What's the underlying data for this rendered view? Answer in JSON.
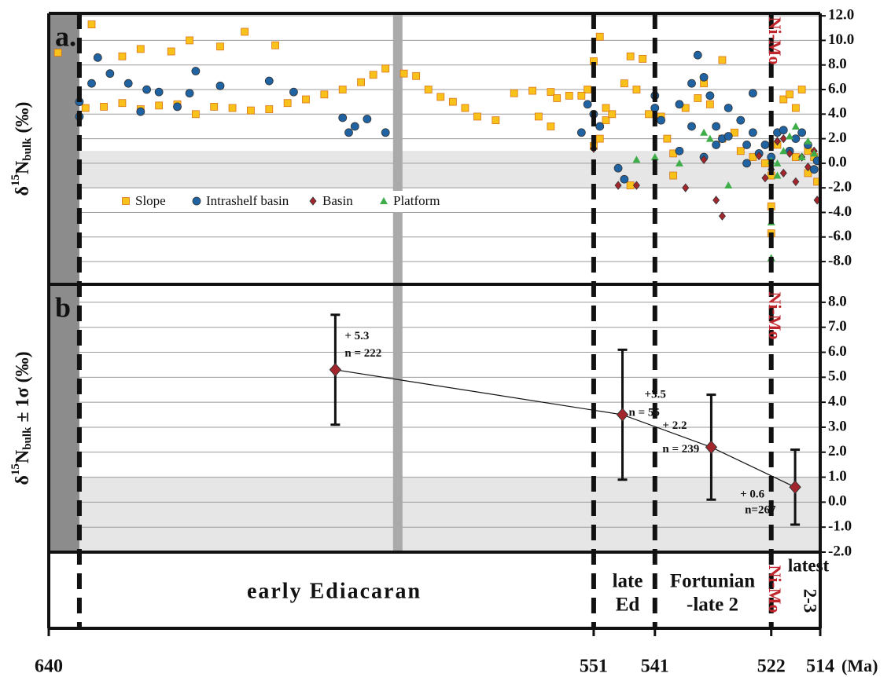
{
  "chart_data": [
    {
      "type": "scatter",
      "panel_label": "a.",
      "y_label": {
        "main": "δ",
        "sup": "15",
        "base": "N",
        "sub": "bulk",
        "rest": " (‰)"
      },
      "xlim": [
        640,
        514
      ],
      "ylim": [
        -9.85,
        12.2
      ],
      "yticks": [
        {
          "value": 12,
          "label": "12.0"
        },
        {
          "value": 10,
          "label": "10.0"
        },
        {
          "value": 8,
          "label": "8.0"
        },
        {
          "value": 6,
          "label": "6.0"
        },
        {
          "value": 4,
          "label": "4.0"
        },
        {
          "value": 2,
          "label": "2.0"
        },
        {
          "value": 0,
          "label": "0.0"
        },
        {
          "value": -2,
          "label": "-2.0"
        },
        {
          "value": -4,
          "label": "-4.0"
        },
        {
          "value": -6,
          "label": "-6.0"
        },
        {
          "value": -8,
          "label": "-8.0"
        }
      ],
      "band": [
        -2,
        1
      ],
      "grid": true,
      "series": [
        {
          "name": "Slope",
          "color": "#f9c21a",
          "marker": "square",
          "x": [
            638.5,
            633,
            628,
            625,
            620,
            617,
            612,
            608,
            603,
            634,
            631,
            628,
            625,
            622,
            619,
            616,
            613,
            610,
            607,
            604,
            601,
            598,
            595,
            592,
            589,
            587,
            585,
            582,
            580,
            578,
            576,
            574,
            572,
            570,
            567,
            564,
            561,
            558,
            555,
            558,
            560,
            552,
            551,
            550,
            550,
            549,
            551,
            548,
            546,
            545,
            544,
            543,
            542,
            540,
            539,
            538,
            545,
            536,
            534,
            533,
            532,
            530,
            530,
            528,
            527,
            525,
            523,
            522,
            522,
            522,
            521,
            520,
            519,
            518,
            517,
            516,
            515,
            514.5,
            518,
            516,
            538,
            553,
            557,
            549
          ],
          "values": [
            9.0,
            11.3,
            8.7,
            9.3,
            9.1,
            10.0,
            9.5,
            10.7,
            9.6,
            4.5,
            4.6,
            4.9,
            4.4,
            4.7,
            4.8,
            4.0,
            4.6,
            4.5,
            4.3,
            4.4,
            4.9,
            5.2,
            5.6,
            6.0,
            6.6,
            7.2,
            7.7,
            7.3,
            7.1,
            6.0,
            5.4,
            5.0,
            4.5,
            3.8,
            3.5,
            5.7,
            5.9,
            5.8,
            5.5,
            3.0,
            3.8,
            6.0,
            1.4,
            2.0,
            10.3,
            3.5,
            8.3,
            4.0,
            6.5,
            8.7,
            6.0,
            8.5,
            4.0,
            3.8,
            2.0,
            -1.0,
            -1.8,
            4.5,
            5.3,
            6.5,
            4.8,
            2.0,
            8.4,
            2.5,
            1.0,
            0.5,
            0.0,
            -1.0,
            -3.5,
            -5.7,
            1.5,
            5.2,
            5.6,
            4.5,
            6.0,
            1.0,
            0.5,
            -1.5,
            0.5,
            -0.8,
            0.8,
            5.5,
            5.3,
            4.5
          ]
        },
        {
          "name": "Intrashelf basin",
          "color": "#1f63a3",
          "marker": "circle",
          "x": [
            635,
            635,
            633,
            632,
            630,
            627,
            625,
            624,
            622,
            619,
            617,
            616,
            612,
            604,
            600,
            592,
            591,
            590,
            588,
            585,
            553,
            552,
            551,
            550,
            547,
            546,
            541,
            541,
            540,
            537,
            535,
            534,
            533,
            532,
            531,
            530,
            529,
            527,
            526,
            525,
            524,
            523,
            522,
            521,
            520,
            519,
            518,
            517,
            516,
            515,
            514.5,
            525,
            537,
            533,
            529,
            531,
            535,
            526
          ],
          "values": [
            3.8,
            5.0,
            6.5,
            8.6,
            7.3,
            6.5,
            4.2,
            6.0,
            5.8,
            4.6,
            5.7,
            7.5,
            6.3,
            6.7,
            5.8,
            3.7,
            2.5,
            3.0,
            3.6,
            2.5,
            2.5,
            4.8,
            4.0,
            3.0,
            -0.4,
            -1.3,
            5.5,
            4.5,
            3.5,
            4.8,
            6.5,
            8.8,
            7.0,
            5.5,
            3.0,
            2.0,
            4.5,
            3.5,
            1.5,
            2.5,
            0.8,
            1.5,
            0.5,
            2.5,
            2.7,
            1.0,
            2.0,
            2.5,
            1.5,
            -0.5,
            0.2,
            5.7,
            1.0,
            0.5,
            2.2,
            1.5,
            3.0,
            0.0
          ]
        },
        {
          "name": "Basin",
          "color": "#a3262d",
          "marker": "diamond",
          "x": [
            551,
            547,
            544,
            536,
            531,
            530,
            533,
            524,
            522,
            521,
            520,
            519,
            518,
            517,
            516,
            515,
            514.5,
            520,
            523
          ],
          "values": [
            1.2,
            -1.8,
            -1.8,
            -2.0,
            -3.0,
            -4.3,
            0.3,
            0.6,
            -0.5,
            1.8,
            -0.8,
            0.8,
            -1.5,
            0.5,
            -0.3,
            1.0,
            -3.0,
            2.0,
            -1.2
          ]
        },
        {
          "name": "Platform",
          "color": "#3fae4a",
          "marker": "triangle",
          "x": [
            544,
            541,
            537,
            533,
            532,
            529,
            522,
            522,
            521,
            520,
            519,
            518,
            517,
            521,
            516,
            515,
            522
          ],
          "values": [
            0.3,
            0.5,
            0.0,
            2.5,
            2.0,
            -1.8,
            -4.8,
            -7.7,
            0.0,
            1.0,
            2.2,
            3.0,
            0.5,
            -1.0,
            1.8,
            0.8,
            0.2
          ]
        }
      ]
    },
    {
      "type": "line",
      "panel_label": "b",
      "y_label": {
        "main": "δ",
        "sup": "15",
        "base": "N",
        "sub": "bulk",
        "rest": " ± 1σ (‰)"
      },
      "xlim": [
        640,
        514
      ],
      "ylim": [
        -2,
        8.72
      ],
      "yticks": [
        {
          "value": 8,
          "label": "8.0"
        },
        {
          "value": 7,
          "label": "7.0"
        },
        {
          "value": 6,
          "label": "6.0"
        },
        {
          "value": 5,
          "label": "5.0"
        },
        {
          "value": 4,
          "label": "4.0"
        },
        {
          "value": 3,
          "label": "3.0"
        },
        {
          "value": 2,
          "label": "2.0"
        },
        {
          "value": 1,
          "label": "1.0"
        },
        {
          "value": 0,
          "label": "0.0"
        },
        {
          "value": -1,
          "label": "-1.0"
        },
        {
          "value": -2,
          "label": "-2.0"
        }
      ],
      "band": [
        -2,
        1
      ],
      "grid": true,
      "x": [
        593.2,
        546.3,
        531.8,
        518.1
      ],
      "values": [
        5.3,
        3.5,
        2.2,
        0.6
      ],
      "errors": [
        2.2,
        2.6,
        2.1,
        1.5
      ],
      "value_labels": [
        "+ 5.3",
        "+3.5",
        "+ 2.2",
        "+ 0.6"
      ],
      "n_labels": [
        "n = 222",
        "n = 55",
        "n = 239",
        "n=267"
      ],
      "color": "#a3262d",
      "xticks": [
        640,
        551,
        541,
        522,
        514
      ],
      "x_label": "(Ma)",
      "boundaries": [
        635,
        551,
        541,
        522
      ],
      "highlight_age": 583
    }
  ],
  "ni_mo_label": "Ni-Mo",
  "periods": {
    "early": "early Ediacaran",
    "late_ed": [
      "late",
      "Ed"
    ],
    "fortunian": [
      "Fortunian",
      "-late 2"
    ],
    "latest": [
      "latest",
      "2-3"
    ]
  }
}
